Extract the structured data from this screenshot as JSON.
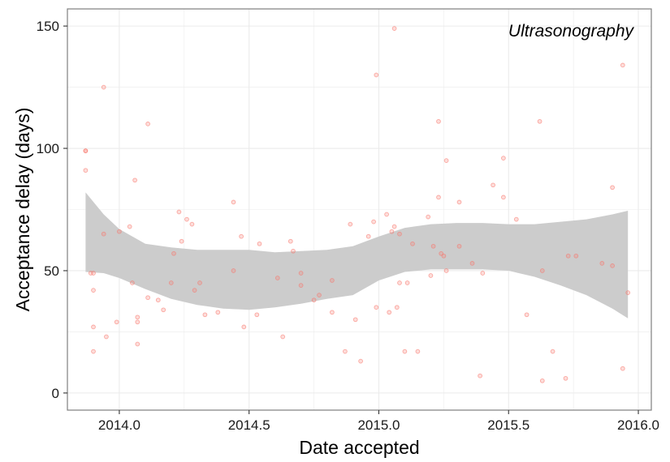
{
  "chart_data": {
    "type": "scatter",
    "annotation": "Ultrasonography",
    "xlabel": "Date accepted",
    "ylabel": "Acceptance delay (days)",
    "xlim": [
      2013.8,
      2016.05
    ],
    "ylim": [
      -7,
      157
    ],
    "xticks": [
      2014.0,
      2014.5,
      2015.0,
      2015.5,
      2016.0
    ],
    "xtick_labels": [
      "2014.0",
      "2014.5",
      "2015.0",
      "2015.5",
      "2016.0"
    ],
    "yticks": [
      0,
      50,
      100,
      150
    ],
    "ytick_labels": [
      "0",
      "50",
      "100",
      "150"
    ],
    "grid": true,
    "colors": {
      "points": "#f8766d",
      "ribbon": "#cccccc",
      "grid": "#ebebeb",
      "border": "#7f7f7f"
    },
    "points": {
      "x": [
        2013.87,
        2013.87,
        2013.87,
        2013.9,
        2013.9,
        2013.9,
        2013.9,
        2013.89,
        2013.94,
        2013.94,
        2013.95,
        2013.99,
        2014.0,
        2014.04,
        2014.05,
        2014.06,
        2014.07,
        2014.07,
        2014.07,
        2014.11,
        2014.11,
        2014.15,
        2014.17,
        2014.2,
        2014.21,
        2014.23,
        2014.24,
        2014.26,
        2014.28,
        2014.29,
        2014.31,
        2014.33,
        2014.38,
        2014.44,
        2014.44,
        2014.47,
        2014.48,
        2014.53,
        2014.54,
        2014.61,
        2014.63,
        2014.66,
        2014.67,
        2014.7,
        2014.7,
        2014.75,
        2014.77,
        2014.82,
        2014.82,
        2014.87,
        2014.89,
        2014.91,
        2014.93,
        2014.96,
        2014.98,
        2014.99,
        2014.99,
        2015.03,
        2015.04,
        2015.05,
        2015.06,
        2015.06,
        2015.07,
        2015.08,
        2015.08,
        2015.1,
        2015.11,
        2015.13,
        2015.15,
        2015.19,
        2015.2,
        2015.21,
        2015.23,
        2015.23,
        2015.24,
        2015.25,
        2015.26,
        2015.26,
        2015.31,
        2015.31,
        2015.36,
        2015.39,
        2015.4,
        2015.44,
        2015.48,
        2015.48,
        2015.53,
        2015.57,
        2015.62,
        2015.63,
        2015.63,
        2015.67,
        2015.72,
        2015.73,
        2015.76,
        2015.86,
        2015.9,
        2015.9,
        2015.94,
        2015.94,
        2015.96
      ],
      "y": [
        99,
        99,
        91,
        49,
        42,
        27,
        17,
        49,
        125,
        65,
        23,
        29,
        66,
        68,
        45,
        87,
        31,
        29,
        20,
        110,
        39,
        38,
        34,
        45,
        57,
        74,
        62,
        71,
        69,
        42,
        45,
        32,
        33,
        50,
        78,
        64,
        27,
        32,
        61,
        47,
        23,
        62,
        58,
        44,
        49,
        38,
        40,
        33,
        46,
        17,
        69,
        30,
        13,
        64,
        70,
        130,
        35,
        73,
        33,
        66,
        68,
        149,
        35,
        65,
        45,
        17,
        45,
        61,
        17,
        72,
        48,
        60,
        80,
        111,
        57,
        56,
        95,
        50,
        78,
        60,
        53,
        7,
        49,
        85,
        80,
        96,
        71,
        32,
        111,
        5,
        50,
        17,
        6,
        56,
        56,
        53,
        52,
        84,
        134,
        10,
        41
      ]
    },
    "smooth": {
      "x": [
        2013.87,
        2013.94,
        2014.0,
        2014.1,
        2014.2,
        2014.3,
        2014.4,
        2014.5,
        2014.6,
        2014.7,
        2014.8,
        2014.9,
        2015.0,
        2015.1,
        2015.2,
        2015.3,
        2015.4,
        2015.5,
        2015.6,
        2015.7,
        2015.8,
        2015.9,
        2015.96
      ],
      "upper": [
        82,
        73,
        67,
        61,
        59.5,
        58.5,
        58.5,
        58.5,
        57.5,
        58,
        58.5,
        60,
        64,
        67.5,
        69,
        69.5,
        69.5,
        69,
        69,
        70,
        71,
        73,
        74.5
      ],
      "lower": [
        49.5,
        49,
        47,
        42.5,
        38.5,
        36,
        34.5,
        34,
        35,
        36.5,
        38.5,
        40,
        46,
        49.5,
        50.5,
        50.5,
        50.5,
        50,
        47.5,
        44,
        40,
        34.5,
        30.5
      ]
    }
  }
}
